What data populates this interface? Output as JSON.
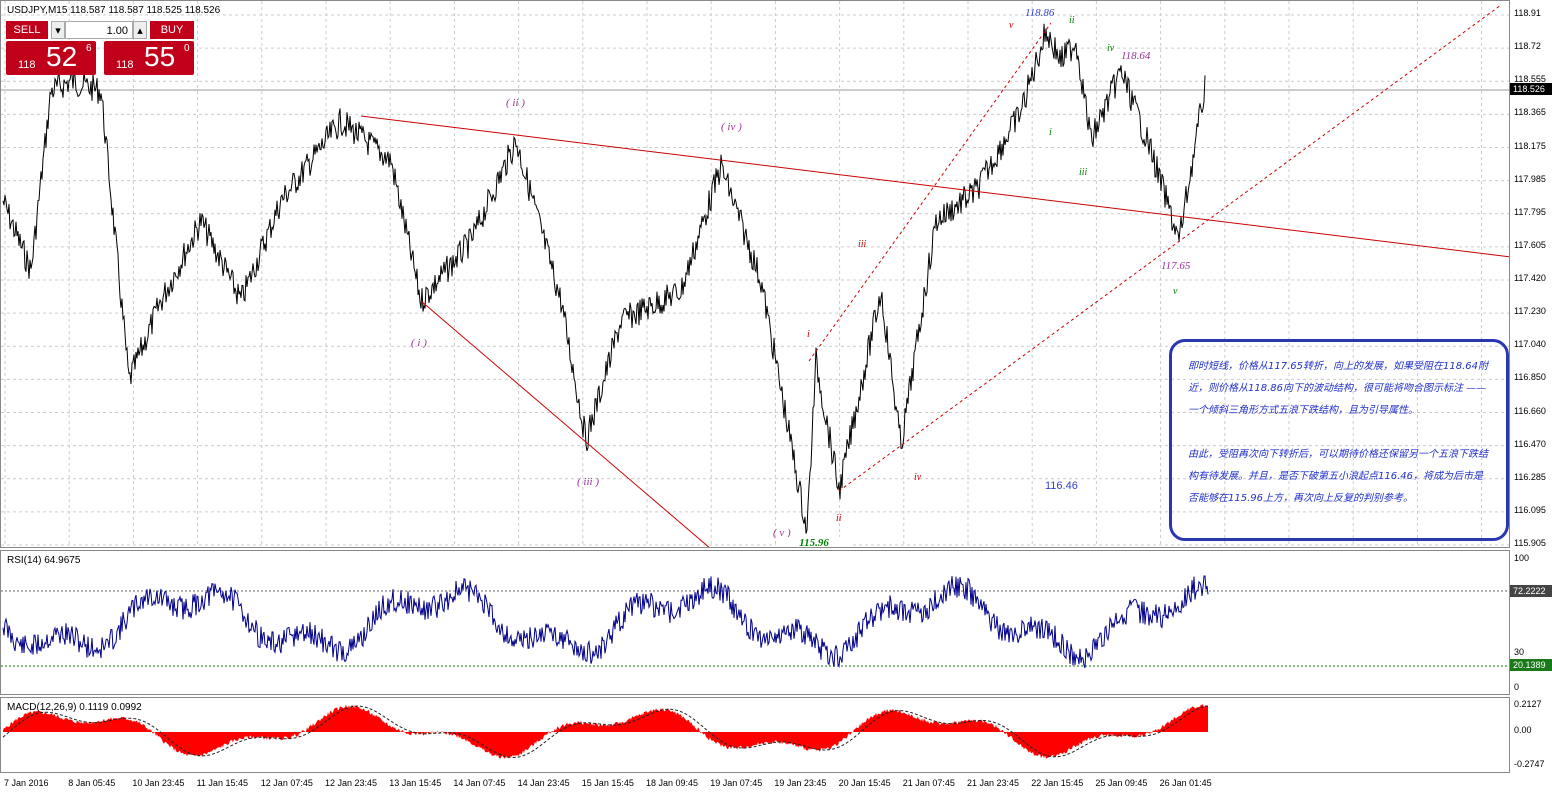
{
  "window": {
    "title": "USDJPY,M15  118.587 118.587 118.525 118.526"
  },
  "trade_panel": {
    "sell_label": "SELL",
    "buy_label": "BUY",
    "volume": "1.00",
    "sell_price_prefix": "118",
    "sell_price_main": "52",
    "sell_price_sup": "6",
    "buy_price_prefix": "118",
    "buy_price_main": "55",
    "buy_price_sup": "0"
  },
  "price_axis": {
    "ticks": [
      "118.91",
      "118.72",
      "118.555",
      "118.365",
      "118.175",
      "117.985",
      "117.795",
      "117.605",
      "117.420",
      "117.230",
      "117.040",
      "116.850",
      "116.660",
      "116.470",
      "116.285",
      "116.095",
      "115.905"
    ],
    "current_price": "118.526"
  },
  "wave_labels": {
    "w_i": "( i )",
    "w_ii": "( ii )",
    "w_iii": "( iii )",
    "w_iv": "( iv )",
    "w_v": "( v )",
    "r_i": "i",
    "r_ii": "ii",
    "r_iii": "iii",
    "r_iv": "iv",
    "r_v": "v",
    "g_i": "i",
    "g_ii": "ii",
    "g_iii": "iii",
    "g_iv": "iv",
    "g_v": "v"
  },
  "price_labels": {
    "high": "118.86",
    "b": "118.64",
    "low2": "117.65",
    "low": "115.96",
    "l46": "116.46"
  },
  "note": {
    "para1": "即时短线，价格从117.65转折，向上的发展，如果受阻在118.64附近，则价格从118.86向下的波动结构，很可能将吻合图示标注 —— 一个倾斜三角形方式五浪下跌结构，且为引导属性。",
    "para2": "由此，受阻再次向下转折后，可以期待价格还保留另一个五浪下跌结构有待发展。并且，是否下破第五小浪起点116.46，将成为后市是否能够在115.96上方，再次向上反复的判别参考。"
  },
  "rsi": {
    "title": "RSI(14) 64.9675",
    "top": "100",
    "level_high": "72.2222",
    "level_mid": "30",
    "level_low": "20.1389",
    "bottom": "0"
  },
  "macd": {
    "title": "MACD(12,26,9) 0.1119 0.0992",
    "top": "0.2127",
    "zero": "0.00",
    "bottom": "-0.2747"
  },
  "time_axis": [
    "7 Jan 2016",
    "8 Jan 05:45",
    "10 Jan 23:45",
    "11 Jan 15:45",
    "12 Jan 07:45",
    "12 Jan 23:45",
    "13 Jan 15:45",
    "14 Jan 07:45",
    "14 Jan 23:45",
    "15 Jan 15:45",
    "18 Jan 09:45",
    "19 Jan 07:45",
    "19 Jan 23:45",
    "20 Jan 15:45",
    "21 Jan 07:45",
    "21 Jan 23:45",
    "22 Jan 15:45",
    "25 Jan 09:45",
    "26 Jan 01:45"
  ],
  "colors": {
    "price_line": "#000000",
    "trend_line": "#cc0000",
    "rsi_line": "#00008b",
    "macd_fill": "#ff0000",
    "accent_green": "#008000",
    "purple": "#993399"
  }
}
